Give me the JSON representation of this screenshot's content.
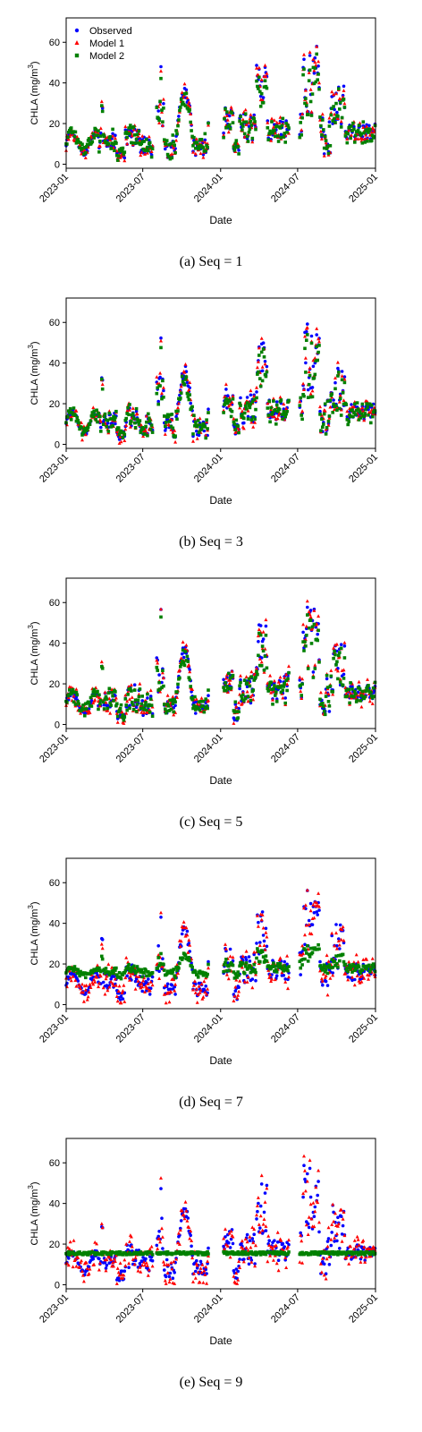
{
  "series_colors": {
    "Observed": "#0000ff",
    "Model 1": "#ff0000",
    "Model 2": "#008000"
  },
  "chart_data": [
    {
      "type": "scatter",
      "caption": "(a)  Seq  =  1",
      "xlabel": "Date",
      "ylabel_main": "CHLA (mg/m",
      "ylabel_sup": "3",
      "ylabel_end": ")",
      "xlim": [
        "2023-01-01",
        "2025-01-01"
      ],
      "ylim": [
        -2,
        72
      ],
      "xticks": [
        "2023-01",
        "2023-07",
        "2024-01",
        "2024-07",
        "2025-01"
      ],
      "yticks": [
        0,
        20,
        40,
        60
      ],
      "legend": "top-left",
      "seq": 1,
      "series": [
        {
          "name": "Observed",
          "marker": "circle",
          "color": "#0000ff",
          "points": []
        },
        {
          "name": "Model 1",
          "marker": "triangle",
          "color": "#ff0000",
          "points": []
        },
        {
          "name": "Model 2",
          "marker": "square",
          "color": "#008000",
          "points": []
        }
      ]
    },
    {
      "type": "scatter",
      "caption": "(b)  Seq  =  3",
      "xlabel": "Date",
      "ylabel_main": "CHLA (mg/m",
      "ylabel_sup": "3",
      "ylabel_end": ")",
      "xlim": [
        "2023-01-01",
        "2025-01-01"
      ],
      "ylim": [
        -2,
        72
      ],
      "xticks": [
        "2023-01",
        "2023-07",
        "2024-01",
        "2024-07",
        "2025-01"
      ],
      "yticks": [
        0,
        20,
        40,
        60
      ],
      "seq": 3,
      "series": [
        {
          "name": "Observed",
          "marker": "circle",
          "color": "#0000ff",
          "points": []
        },
        {
          "name": "Model 1",
          "marker": "triangle",
          "color": "#ff0000",
          "points": []
        },
        {
          "name": "Model 2",
          "marker": "square",
          "color": "#008000",
          "points": []
        }
      ]
    },
    {
      "type": "scatter",
      "caption": "(c)  Seq  =  5",
      "xlabel": "Date",
      "ylabel_main": "CHLA (mg/m",
      "ylabel_sup": "3",
      "ylabel_end": ")",
      "xlim": [
        "2023-01-01",
        "2025-01-01"
      ],
      "ylim": [
        -2,
        72
      ],
      "xticks": [
        "2023-01",
        "2023-07",
        "2024-01",
        "2024-07",
        "2025-01"
      ],
      "yticks": [
        0,
        20,
        40,
        60
      ],
      "seq": 5,
      "series": [
        {
          "name": "Observed",
          "marker": "circle",
          "color": "#0000ff",
          "points": []
        },
        {
          "name": "Model 1",
          "marker": "triangle",
          "color": "#ff0000",
          "points": []
        },
        {
          "name": "Model 2",
          "marker": "square",
          "color": "#008000",
          "points": []
        }
      ]
    },
    {
      "type": "scatter",
      "caption": "(d)  Seq  =  7",
      "xlabel": "Date",
      "ylabel_main": "CHLA (mg/m",
      "ylabel_sup": "3",
      "ylabel_end": ")",
      "xlim": [
        "2023-01-01",
        "2025-01-01"
      ],
      "ylim": [
        -2,
        72
      ],
      "xticks": [
        "2023-01",
        "2023-07",
        "2024-01",
        "2024-07",
        "2025-01"
      ],
      "yticks": [
        0,
        20,
        40,
        60
      ],
      "seq": 7,
      "series": [
        {
          "name": "Observed",
          "marker": "circle",
          "color": "#0000ff",
          "points": []
        },
        {
          "name": "Model 1",
          "marker": "triangle",
          "color": "#ff0000",
          "points": []
        },
        {
          "name": "Model 2",
          "marker": "square",
          "color": "#008000",
          "points": []
        }
      ]
    },
    {
      "type": "scatter",
      "caption": "(e)  Seq  =  9",
      "xlabel": "Date",
      "ylabel_main": "CHLA (mg/m",
      "ylabel_sup": "3",
      "ylabel_end": ")",
      "xlim": [
        "2023-01-01",
        "2025-01-01"
      ],
      "ylim": [
        -2,
        72
      ],
      "xticks": [
        "2023-01",
        "2023-07",
        "2024-01",
        "2024-07",
        "2025-01"
      ],
      "yticks": [
        0,
        20,
        40,
        60
      ],
      "seq": 9,
      "series": [
        {
          "name": "Observed",
          "marker": "circle",
          "color": "#0000ff",
          "points": []
        },
        {
          "name": "Model 1",
          "marker": "triangle",
          "color": "#ff0000",
          "points": []
        },
        {
          "name": "Model 2",
          "marker": "square",
          "color": "#008000",
          "points": []
        }
      ]
    }
  ]
}
